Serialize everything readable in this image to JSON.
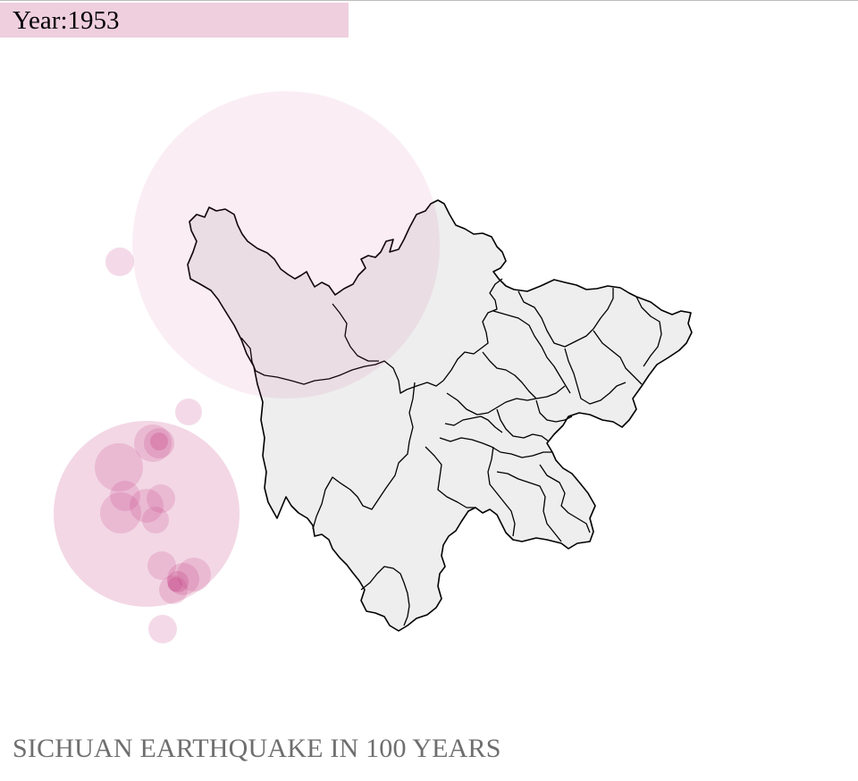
{
  "header": {
    "year_label": "Year:1953"
  },
  "title": "SICHUAN EARTHQUAKE IN 100 YEARS",
  "colors": {
    "bubble": "#c7488a",
    "year_bar": "#efcfde",
    "province_fill": "#eeeeee",
    "border": "#000000",
    "title": "#6e6e6e"
  }
}
